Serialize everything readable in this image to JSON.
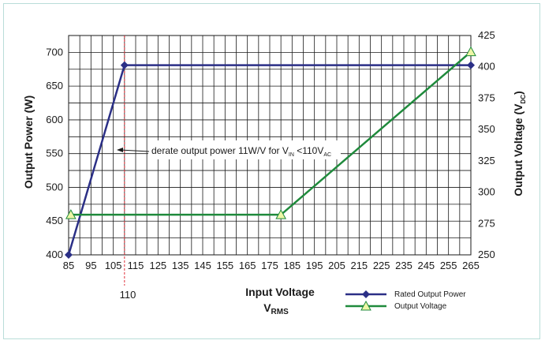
{
  "chart_data": {
    "type": "line",
    "title": "",
    "xlabel": "Input Voltage",
    "xlabel_sub": "V",
    "xlabel_sub_small": "RMS",
    "ylabel_left": "Output Power (W)",
    "ylabel_right_main": "Output Voltage (V",
    "ylabel_right_sub": "DC",
    "ylabel_right_end": ")",
    "xlim": [
      85,
      265
    ],
    "ylim_left": [
      400,
      725
    ],
    "ylim_right": [
      250,
      425
    ],
    "x_ticks": [
      85,
      95,
      105,
      115,
      125,
      135,
      145,
      155,
      165,
      175,
      185,
      195,
      205,
      215,
      225,
      235,
      245,
      255,
      265
    ],
    "y_left_ticks": [
      400,
      450,
      500,
      550,
      600,
      650,
      700
    ],
    "y_right_ticks": [
      250,
      275,
      300,
      325,
      350,
      375,
      400,
      425
    ],
    "grid": true,
    "marker_line": {
      "x": 110,
      "label": "110",
      "color": "#e0303a"
    },
    "annotation": {
      "text_main": "derate output power 11W/V for V",
      "text_sub1": "IN",
      "text_mid": " <110V",
      "text_sub2": "AC",
      "arrow_target": {
        "x": 104,
        "y": 563
      }
    },
    "series": [
      {
        "name": "Rated Output Power",
        "axis": "left",
        "color": "#2b2f86",
        "marker": "diamond",
        "x": [
          85,
          110,
          265
        ],
        "y": [
          400,
          681,
          681
        ]
      },
      {
        "name": "Output Voltage",
        "axis": "right",
        "color": "#1f8a3c",
        "marker": "triangle",
        "marker_fill": "#eef6a6",
        "x": [
          86,
          180,
          265
        ],
        "y": [
          282,
          282,
          412
        ]
      }
    ],
    "legend_position": "bottom-right"
  }
}
